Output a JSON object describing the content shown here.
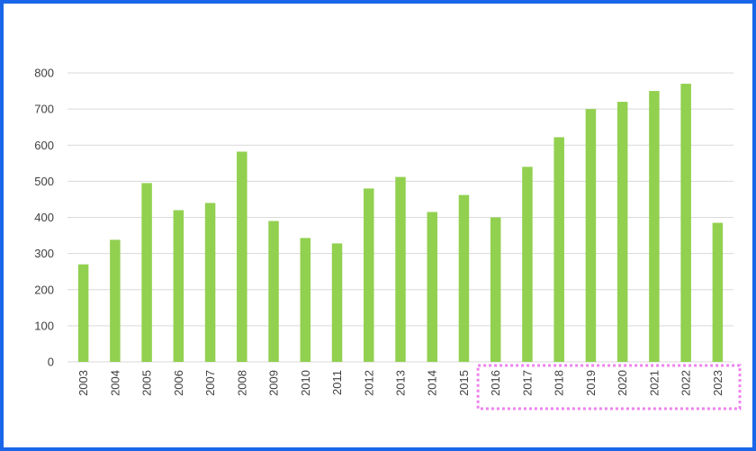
{
  "chart_data": {
    "type": "bar",
    "title": "",
    "xlabel": "",
    "ylabel": "",
    "categories": [
      "2003",
      "2004",
      "2005",
      "2006",
      "2007",
      "2008",
      "2009",
      "2010",
      "2011",
      "2012",
      "2013",
      "2014",
      "2015",
      "2016",
      "2017",
      "2018",
      "2019",
      "2020",
      "2021",
      "2022",
      "2023"
    ],
    "values": [
      270,
      338,
      495,
      420,
      440,
      582,
      390,
      343,
      328,
      480,
      512,
      415,
      462,
      400,
      540,
      622,
      700,
      720,
      750,
      770,
      385
    ],
    "ylim": [
      0,
      800
    ],
    "yticks": [
      0,
      100,
      200,
      300,
      400,
      500,
      600,
      700,
      800
    ],
    "grid": true,
    "legend": "none",
    "highlight": {
      "from": "2016",
      "to": "2023",
      "style": "dotted"
    }
  },
  "colors": {
    "bar": "#92d050",
    "frame": "#1a66e8",
    "grid": "#d9d9d9",
    "highlight": "#ee82ee",
    "text": "#404040"
  }
}
